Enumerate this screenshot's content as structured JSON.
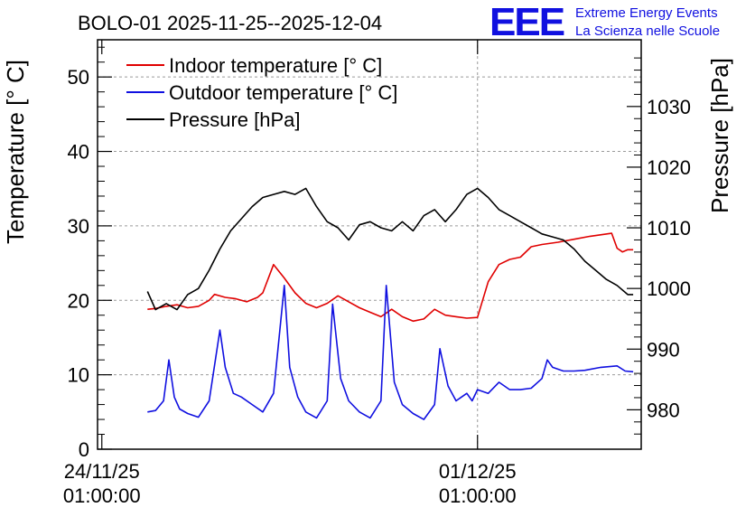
{
  "chart_data": {
    "type": "line",
    "title": "BOLO-01 2025-11-25--2025-12-04",
    "ylabel": "Temperature [° C]",
    "y2label": "Pressure [hPa]",
    "ylim": [
      0,
      55
    ],
    "y2lim": [
      973.5,
      1041
    ],
    "yticks": [
      0,
      10,
      20,
      30,
      40,
      50
    ],
    "y2ticks": [
      980,
      990,
      1000,
      1010,
      1020,
      1030
    ],
    "xlim": [
      -0.08,
      10.05
    ],
    "xticks": [
      {
        "x": 0,
        "line1": "24/11/25",
        "line2": "01:00:00"
      },
      {
        "x": 7,
        "line1": "01/12/25",
        "line2": "01:00:00"
      }
    ],
    "grid": true,
    "legend_position": "top-left",
    "series": [
      {
        "name": "Indoor temperature [° C]",
        "color": "#e00000",
        "axis": "left",
        "x": [
          0.85,
          1.0,
          1.2,
          1.4,
          1.6,
          1.8,
          2.0,
          2.1,
          2.3,
          2.5,
          2.7,
          2.9,
          3.0,
          3.2,
          3.4,
          3.6,
          3.8,
          4.0,
          4.2,
          4.4,
          4.6,
          4.8,
          5.0,
          5.2,
          5.4,
          5.6,
          5.8,
          6.0,
          6.2,
          6.4,
          6.6,
          6.8,
          7.0,
          7.2,
          7.4,
          7.6,
          7.8,
          8.0,
          8.2,
          8.5,
          8.8,
          9.1,
          9.5,
          9.6,
          9.7,
          9.8,
          9.9
        ],
        "y": [
          18.8,
          18.9,
          19.2,
          19.4,
          19.0,
          19.2,
          20.0,
          20.8,
          20.4,
          20.2,
          19.8,
          20.4,
          21.0,
          24.8,
          23.0,
          21.0,
          19.6,
          19.0,
          19.6,
          20.6,
          19.8,
          19.0,
          18.4,
          17.8,
          18.8,
          17.8,
          17.2,
          17.5,
          18.8,
          18.0,
          17.8,
          17.6,
          17.7,
          22.5,
          24.8,
          25.5,
          25.8,
          27.2,
          27.5,
          27.8,
          28.2,
          28.6,
          29.0,
          27.0,
          26.5,
          26.8,
          26.8
        ]
      },
      {
        "name": "Outdoor temperature [° C]",
        "color": "#1010e0",
        "axis": "left",
        "x": [
          0.85,
          1.0,
          1.15,
          1.25,
          1.35,
          1.45,
          1.6,
          1.8,
          2.0,
          2.2,
          2.3,
          2.45,
          2.6,
          2.8,
          3.0,
          3.2,
          3.4,
          3.5,
          3.65,
          3.8,
          4.0,
          4.2,
          4.3,
          4.45,
          4.6,
          4.8,
          5.0,
          5.2,
          5.3,
          5.45,
          5.6,
          5.8,
          6.0,
          6.2,
          6.3,
          6.45,
          6.6,
          6.8,
          6.9,
          7.0,
          7.2,
          7.4,
          7.6,
          7.8,
          8.0,
          8.2,
          8.3,
          8.4,
          8.6,
          8.8,
          9.0,
          9.3,
          9.6,
          9.75,
          9.9
        ],
        "y": [
          5.0,
          5.2,
          6.5,
          12.0,
          7.0,
          5.4,
          4.8,
          4.3,
          6.5,
          16.0,
          11.0,
          7.5,
          7.0,
          6.0,
          5.0,
          7.5,
          22.0,
          11.0,
          7.0,
          5.0,
          4.2,
          6.5,
          19.5,
          9.5,
          6.5,
          5.0,
          4.2,
          6.5,
          22.0,
          9.0,
          6.0,
          4.8,
          4.0,
          6.0,
          13.5,
          8.5,
          6.5,
          7.5,
          6.5,
          8.0,
          7.5,
          9.0,
          8.0,
          8.0,
          8.2,
          9.5,
          12.0,
          11.0,
          10.5,
          10.5,
          10.6,
          11.0,
          11.2,
          10.5,
          10.4
        ]
      },
      {
        "name": "Pressure [hPa]",
        "color": "#000000",
        "axis": "right",
        "x": [
          0.85,
          1.0,
          1.2,
          1.4,
          1.6,
          1.8,
          2.0,
          2.2,
          2.4,
          2.6,
          2.8,
          3.0,
          3.2,
          3.4,
          3.6,
          3.8,
          4.0,
          4.2,
          4.4,
          4.6,
          4.8,
          5.0,
          5.2,
          5.4,
          5.6,
          5.8,
          6.0,
          6.2,
          6.4,
          6.6,
          6.8,
          7.0,
          7.2,
          7.4,
          7.6,
          7.8,
          8.0,
          8.2,
          8.4,
          8.6,
          8.8,
          9.0,
          9.2,
          9.4,
          9.6,
          9.8,
          9.9
        ],
        "y": [
          999.5,
          996.5,
          997.5,
          996.5,
          999.0,
          1000.0,
          1003.0,
          1006.5,
          1009.5,
          1011.5,
          1013.5,
          1015.0,
          1015.5,
          1016.0,
          1015.5,
          1016.5,
          1013.5,
          1011.0,
          1010.0,
          1008.0,
          1010.5,
          1011.0,
          1010.0,
          1009.5,
          1011.0,
          1009.5,
          1012.0,
          1013.0,
          1011.0,
          1013.0,
          1015.5,
          1016.5,
          1015.0,
          1013.0,
          1012.0,
          1011.0,
          1010.0,
          1009.0,
          1008.5,
          1008.0,
          1006.5,
          1004.5,
          1003.0,
          1001.5,
          1000.5,
          999.0,
          999.0
        ]
      }
    ]
  },
  "logo": {
    "mark": "EEE",
    "line1": "Extreme Energy Events",
    "line2": "La Scienza nelle Scuole"
  }
}
